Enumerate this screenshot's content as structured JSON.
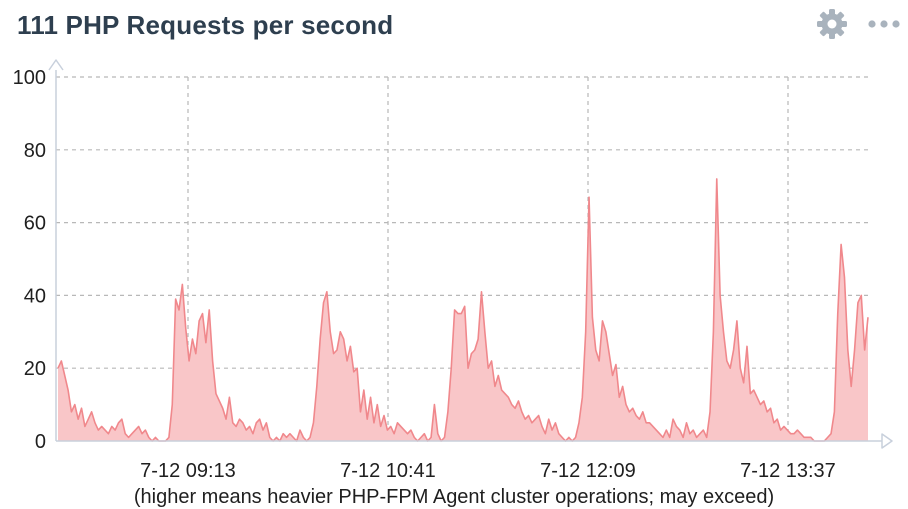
{
  "panel": {
    "title": "111 PHP Requests per second",
    "settings_icon": "gear-icon",
    "menu_icon": "more-horizontal-icon"
  },
  "caption": "(higher means heavier PHP-FPM Agent cluster operations; may exceed)",
  "colors": {
    "title": "#2e3f4f",
    "line": "#f0888c",
    "fill": "#f9c6c8",
    "grid": "#b8b8b8",
    "axis": "#c8d0dc",
    "icon": "#a9b3bd"
  },
  "chart_data": {
    "type": "area",
    "title": "111 PHP Requests per second",
    "xlabel": "",
    "ylabel": "",
    "ylim": [
      0,
      100
    ],
    "yticks": [
      "0",
      "20",
      "40",
      "60",
      "80",
      "100"
    ],
    "xticks": [
      "7-12 09:13",
      "7-12 10:41",
      "7-12 12:09",
      "7-12 13:37"
    ],
    "x_start": "7-12 08:14",
    "x_end": "7-12 14:11",
    "grid": true,
    "series": [
      {
        "values": [
          20,
          22,
          18,
          14,
          8,
          10,
          6,
          9,
          4,
          6,
          8,
          5,
          3,
          4,
          3,
          2,
          4,
          3,
          5,
          6,
          2,
          1,
          2,
          3,
          4,
          2,
          3,
          1,
          0,
          1,
          0,
          0,
          0,
          1,
          10,
          39,
          36,
          43,
          31,
          22,
          28,
          24,
          33,
          35,
          27,
          36,
          22,
          13,
          11,
          9,
          6,
          12,
          5,
          4,
          6,
          5,
          3,
          4,
          2,
          5,
          6,
          3,
          5,
          1,
          0,
          1,
          0,
          2,
          1,
          2,
          1,
          0,
          3,
          1,
          0,
          1,
          5,
          15,
          28,
          38,
          41,
          30,
          24,
          25,
          30,
          28,
          22,
          26,
          19,
          20,
          8,
          14,
          6,
          12,
          5,
          10,
          4,
          7,
          3,
          4,
          2,
          5,
          4,
          3,
          2,
          3,
          1,
          0,
          1,
          2,
          0,
          1,
          10,
          2,
          0,
          1,
          8,
          20,
          36,
          35,
          35,
          37,
          20,
          24,
          25,
          28,
          41,
          30,
          20,
          22,
          15,
          18,
          14,
          13,
          12,
          10,
          9,
          11,
          8,
          6,
          7,
          5,
          6,
          7,
          4,
          2,
          6,
          3,
          5,
          2,
          1,
          0,
          1,
          0,
          1,
          5,
          12,
          30,
          67,
          34,
          25,
          22,
          33,
          30,
          24,
          18,
          21,
          12,
          15,
          10,
          8,
          9,
          7,
          6,
          8,
          5,
          5,
          4,
          3,
          2,
          1,
          3,
          1,
          6,
          4,
          3,
          1,
          5,
          2,
          3,
          1,
          2,
          3,
          1,
          8,
          30,
          72,
          40,
          30,
          22,
          20,
          25,
          33,
          20,
          16,
          26,
          13,
          14,
          12,
          10,
          11,
          8,
          9,
          5,
          6,
          3,
          4,
          3,
          2,
          2,
          3,
          2,
          1,
          1,
          1,
          0,
          0,
          0,
          0,
          1,
          2,
          8,
          35,
          54,
          45,
          25,
          15,
          25,
          38,
          40,
          25,
          34
        ]
      }
    ]
  }
}
